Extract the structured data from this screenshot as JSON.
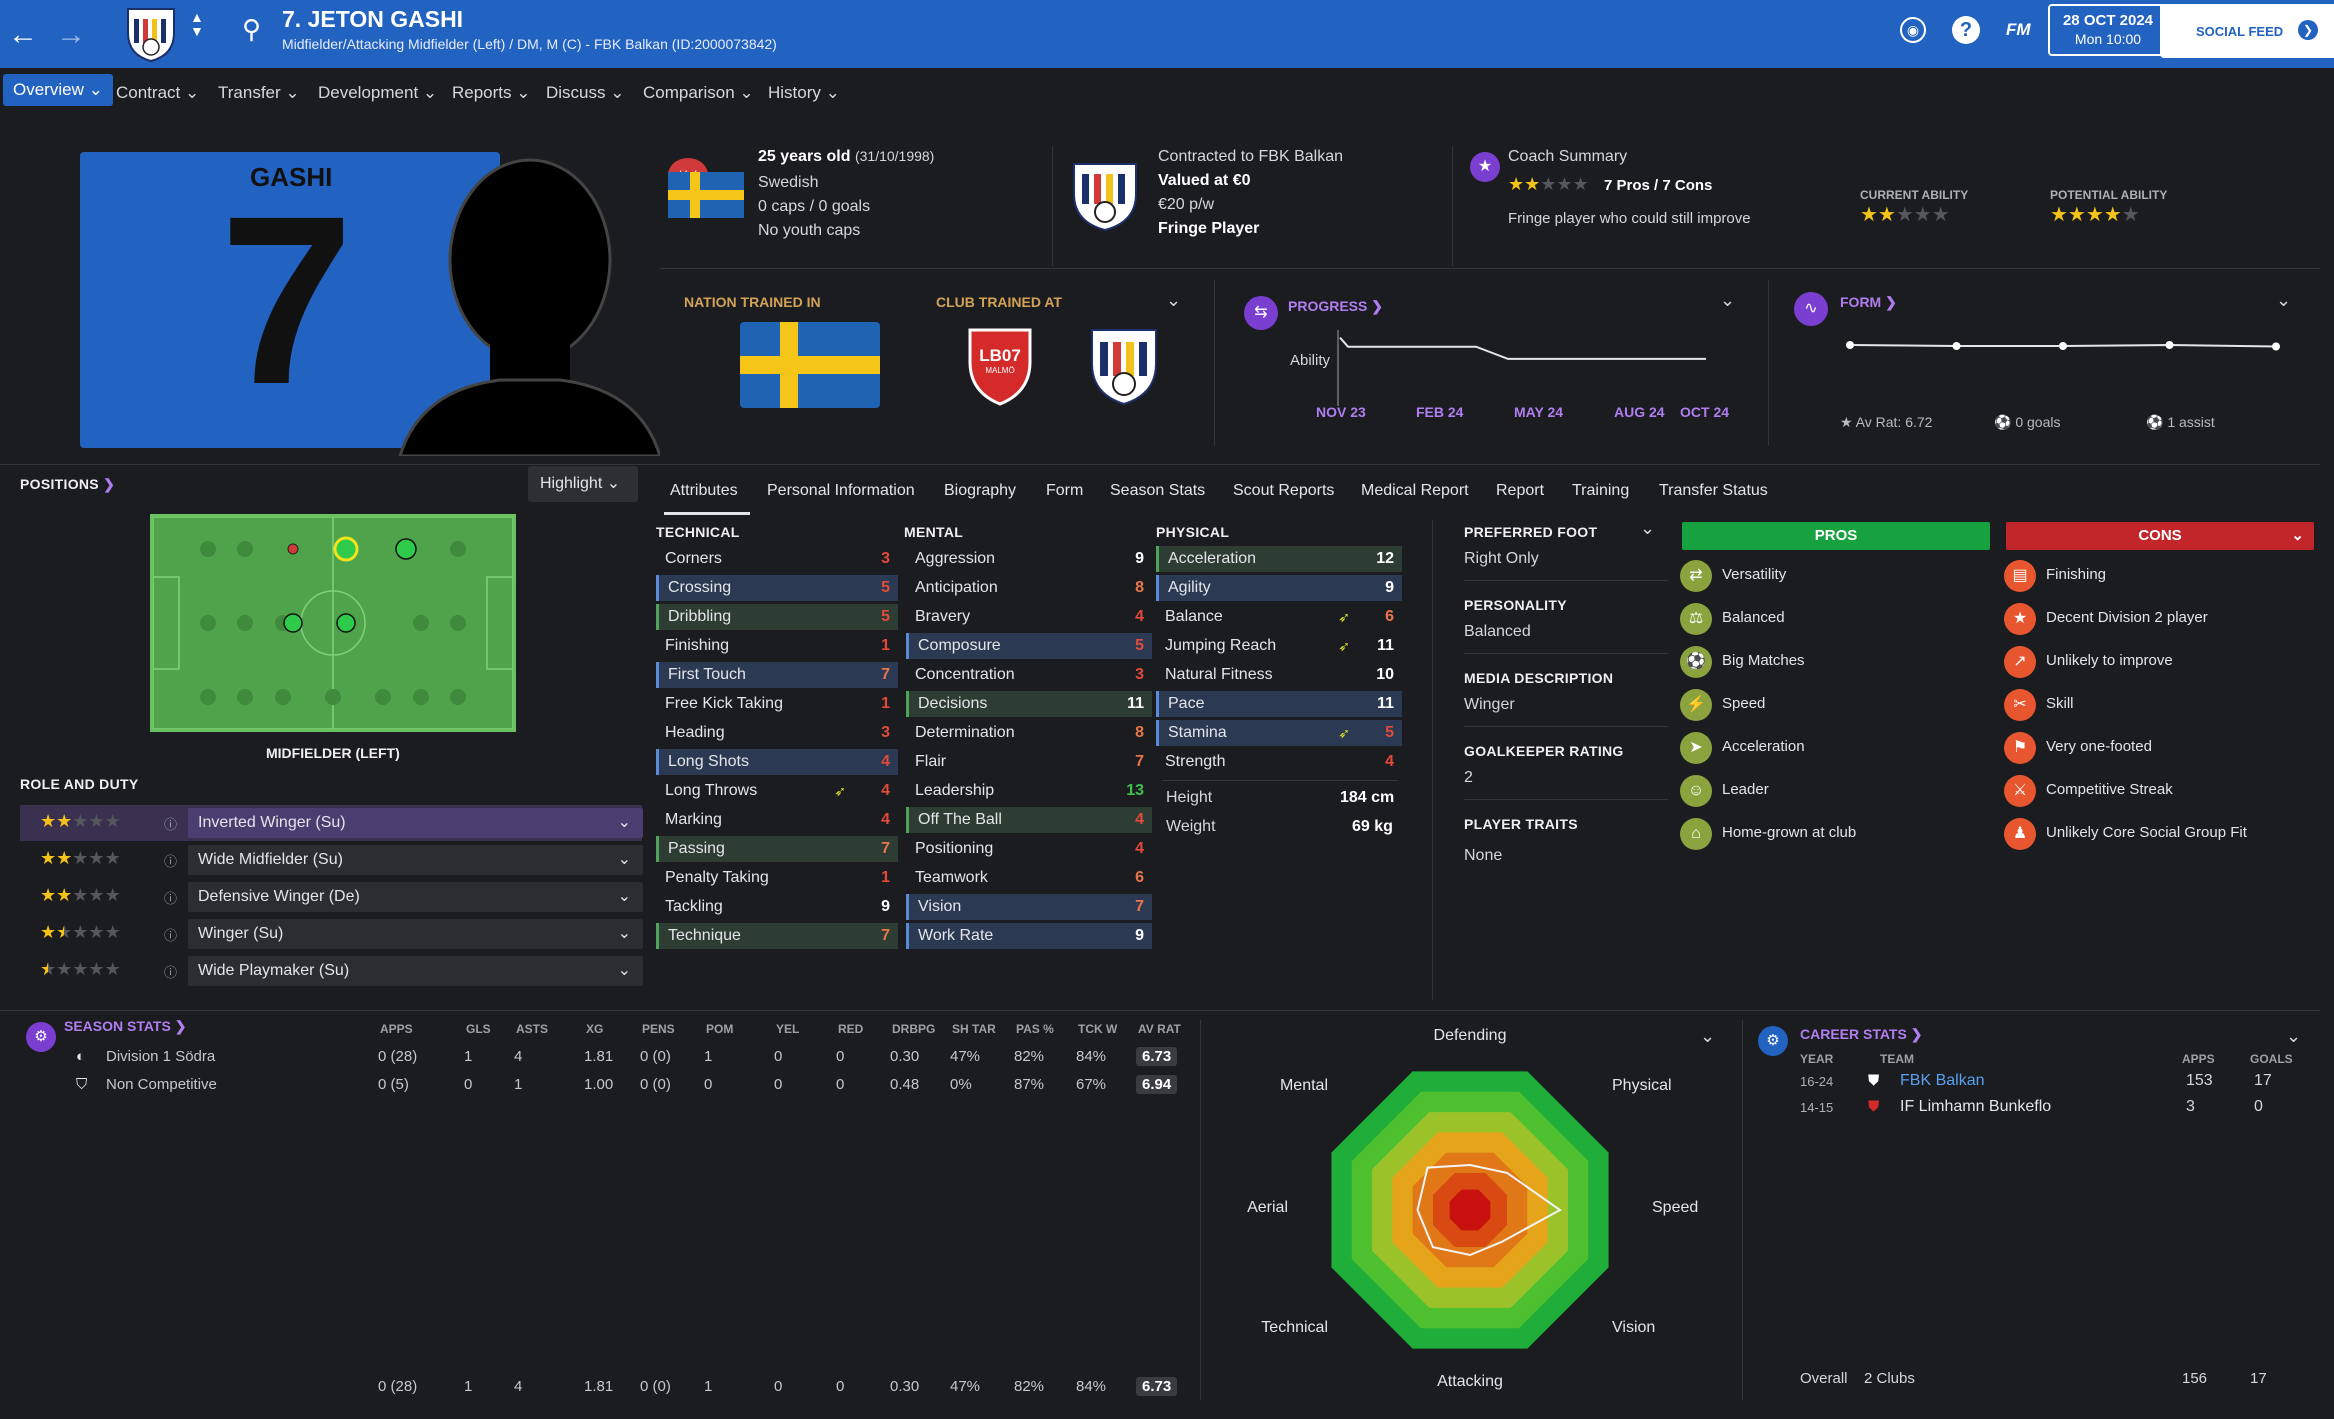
{
  "header": {
    "title": "7. JETON GASHI",
    "subtitle": "Midfielder/Attacking Midfielder (Left) / DM, M (C) - FBK Balkan (ID:2000073842)",
    "date": "28 OCT 2024",
    "time": "Mon 10:00",
    "social_label": "SOCIAL FEED",
    "fm_label": "FM"
  },
  "tabs": [
    "Overview",
    "Contract",
    "Transfer",
    "Development",
    "Reports",
    "Discuss",
    "Comparison",
    "History"
  ],
  "shirt": {
    "name": "GASHI",
    "number": "7"
  },
  "info": {
    "age": "25 years old",
    "dob": "(31/10/1998)",
    "nationality": "Swedish",
    "caps": "0 caps / 0 goals",
    "youth": "No youth caps",
    "hol_badge": "Hol",
    "contract": "Contracted to FBK Balkan",
    "value": "Valued at €0",
    "wage": "€20 p/w",
    "status": "Fringe Player"
  },
  "coach": {
    "title": "Coach Summary",
    "pros_cons": "7 Pros / 7 Cons",
    "text": "Fringe player who could still improve",
    "current_label": "CURRENT ABILITY",
    "potential_label": "POTENTIAL ABILITY",
    "coach_stars": 2,
    "current_stars": 2,
    "potential_stars": 4
  },
  "trained": {
    "nation_label": "NATION TRAINED IN",
    "club_label": "CLUB TRAINED AT",
    "club_badge": "LB07",
    "club_badge_sub": "MALMÖ"
  },
  "progress": {
    "label": "PROGRESS",
    "ability_label": "Ability",
    "x_labels": [
      "NOV 23",
      "FEB 24",
      "MAY 24",
      "AUG 24",
      "OCT 24"
    ],
    "values": [
      0.9,
      0.78,
      0.78,
      0.62,
      0.62
    ]
  },
  "form": {
    "label": "FORM",
    "av_rat": "Av Rat: 6.72",
    "goals": "0 goals",
    "assists": "1 assist",
    "values": [
      0.5,
      0.48,
      0.48,
      0.5,
      0.47
    ]
  },
  "positions": {
    "label": "POSITIONS",
    "highlight": "Highlight",
    "position_name": "MIDFIELDER (LEFT)"
  },
  "roles": {
    "label": "ROLE AND DUTY",
    "items": [
      {
        "name": "Inverted Winger (Su)",
        "stars": 2
      },
      {
        "name": "Wide Midfielder (Su)",
        "stars": 2
      },
      {
        "name": "Defensive Winger (De)",
        "stars": 2
      },
      {
        "name": "Winger (Su)",
        "stars": 1.5
      },
      {
        "name": "Wide Playmaker (Su)",
        "stars": 0.5
      }
    ]
  },
  "subtabs": [
    "Attributes",
    "Personal Information",
    "Biography",
    "Form",
    "Season Stats",
    "Scout Reports",
    "Medical Report",
    "Report",
    "Training",
    "Transfer Status"
  ],
  "attributes": {
    "technical_label": "TECHNICAL",
    "mental_label": "MENTAL",
    "physical_label": "PHYSICAL",
    "technical": [
      [
        "Corners",
        "3"
      ],
      [
        "Crossing",
        "5"
      ],
      [
        "Dribbling",
        "5"
      ],
      [
        "Finishing",
        "1"
      ],
      [
        "First Touch",
        "7"
      ],
      [
        "Free Kick Taking",
        "1"
      ],
      [
        "Heading",
        "3"
      ],
      [
        "Long Shots",
        "4"
      ],
      [
        "Long Throws",
        "4"
      ],
      [
        "Marking",
        "4"
      ],
      [
        "Passing",
        "7"
      ],
      [
        "Penalty Taking",
        "1"
      ],
      [
        "Tackling",
        "9"
      ],
      [
        "Technique",
        "7"
      ]
    ],
    "mental": [
      [
        "Aggression",
        "9"
      ],
      [
        "Anticipation",
        "8"
      ],
      [
        "Bravery",
        "4"
      ],
      [
        "Composure",
        "5"
      ],
      [
        "Concentration",
        "3"
      ],
      [
        "Decisions",
        "11"
      ],
      [
        "Determination",
        "8"
      ],
      [
        "Flair",
        "7"
      ],
      [
        "Leadership",
        "13"
      ],
      [
        "Off The Ball",
        "4"
      ],
      [
        "Positioning",
        "4"
      ],
      [
        "Teamwork",
        "6"
      ],
      [
        "Vision",
        "7"
      ],
      [
        "Work Rate",
        "9"
      ]
    ],
    "physical": [
      [
        "Acceleration",
        "12"
      ],
      [
        "Agility",
        "9"
      ],
      [
        "Balance",
        "6"
      ],
      [
        "Jumping Reach",
        "11"
      ],
      [
        "Natural Fitness",
        "10"
      ],
      [
        "Pace",
        "11"
      ],
      [
        "Stamina",
        "5"
      ],
      [
        "Strength",
        "4"
      ]
    ],
    "height_label": "Height",
    "height": "184 cm",
    "weight_label": "Weight",
    "weight": "69 kg"
  },
  "details": {
    "foot_label": "PREFERRED FOOT",
    "foot": "Right Only",
    "personality_label": "PERSONALITY",
    "personality": "Balanced",
    "media_label": "MEDIA DESCRIPTION",
    "media": "Winger",
    "gk_label": "GOALKEEPER RATING",
    "gk": "2",
    "traits_label": "PLAYER TRAITS",
    "traits": "None"
  },
  "pros": {
    "label": "PROS",
    "items": [
      "Versatility",
      "Balanced",
      "Big Matches",
      "Speed",
      "Acceleration",
      "Leader",
      "Home-grown at club"
    ]
  },
  "cons": {
    "label": "CONS",
    "items": [
      "Finishing",
      "Decent Division 2 player",
      "Unlikely to improve",
      "Skill",
      "Very one-footed",
      "Competitive Streak",
      "Unlikely Core Social Group Fit"
    ]
  },
  "season": {
    "label": "SEASON STATS",
    "headers": [
      "APPS",
      "GLS",
      "ASTS",
      "XG",
      "PENS",
      "POM",
      "YEL",
      "RED",
      "DRBPG",
      "SH TAR",
      "PAS %",
      "TCK W",
      "AV RAT"
    ],
    "rows": [
      {
        "name": "Division 1 Södra",
        "vals": [
          "0 (28)",
          "1",
          "4",
          "1.81",
          "0 (0)",
          "1",
          "0",
          "0",
          "0.30",
          "47%",
          "82%",
          "84%",
          "6.73"
        ]
      },
      {
        "name": "Non Competitive",
        "vals": [
          "0 (5)",
          "0",
          "1",
          "1.00",
          "0 (0)",
          "0",
          "0",
          "0",
          "0.48",
          "0%",
          "87%",
          "67%",
          "6.94"
        ]
      }
    ],
    "total": [
      "0 (28)",
      "1",
      "4",
      "1.81",
      "0 (0)",
      "1",
      "0",
      "0",
      "0.30",
      "47%",
      "82%",
      "84%",
      "6.73"
    ]
  },
  "radar": {
    "labels": [
      "Defending",
      "Physical",
      "Speed",
      "Vision",
      "Attacking",
      "Technical",
      "Aerial",
      "Mental"
    ],
    "values": [
      0.3,
      0.35,
      0.6,
      0.3,
      0.3,
      0.35,
      0.35,
      0.4
    ]
  },
  "career": {
    "label": "CAREER STATS",
    "headers": [
      "YEAR",
      "TEAM",
      "APPS",
      "GOALS"
    ],
    "rows": [
      [
        "16-24",
        "FBK Balkan",
        "153",
        "17"
      ],
      [
        "14-15",
        "IF Limhamn Bunkeflo",
        "3",
        "0"
      ]
    ],
    "overall_label": "Overall",
    "overall_clubs": "2 Clubs",
    "overall_apps": "156",
    "overall_goals": "17"
  }
}
